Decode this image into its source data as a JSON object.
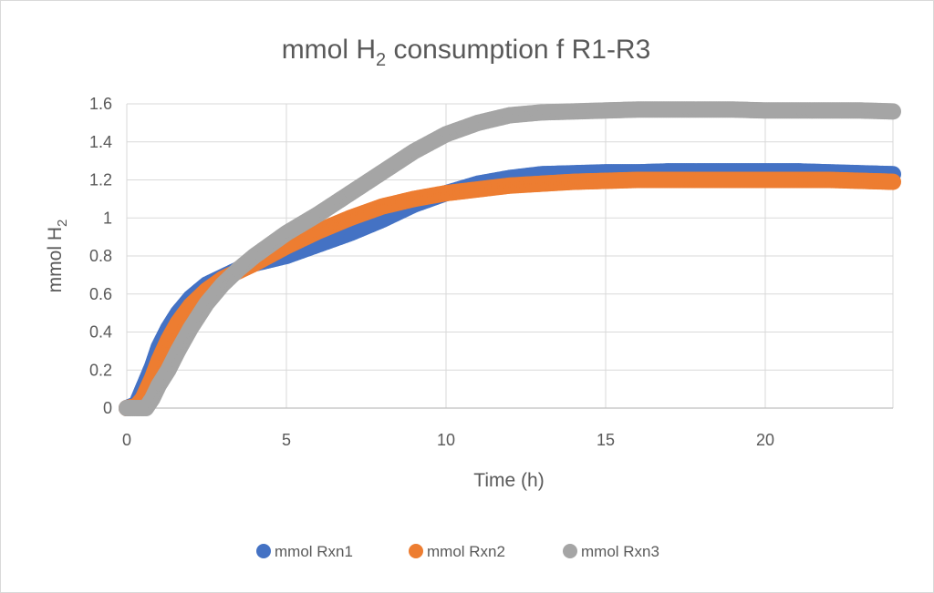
{
  "chart_data": {
    "type": "scatter",
    "title": "mmol H",
    "title_subscript": "2",
    "title_suffix": " consumption f R1-R3",
    "xlabel": "Time (h)",
    "ylabel": "mmol H",
    "ylabel_subscript": "2",
    "xlim": [
      0,
      24
    ],
    "ylim": [
      0,
      1.6
    ],
    "x_ticks": [
      "0",
      "5",
      "10",
      "15",
      "20"
    ],
    "y_ticks": [
      "0",
      "0.2",
      "0.4",
      "0.6",
      "0.8",
      "1",
      "1.2",
      "1.4",
      "1.6"
    ],
    "grid": true,
    "legend_position": "bottom",
    "series": [
      {
        "name": "mmol Rxn1",
        "color": "#4472c4",
        "points": [
          [
            0,
            0
          ],
          [
            0.3,
            0.02
          ],
          [
            0.5,
            0.1
          ],
          [
            0.8,
            0.22
          ],
          [
            1,
            0.32
          ],
          [
            1.3,
            0.42
          ],
          [
            1.6,
            0.5
          ],
          [
            2,
            0.58
          ],
          [
            2.5,
            0.65
          ],
          [
            3,
            0.69
          ],
          [
            3.5,
            0.73
          ],
          [
            4,
            0.76
          ],
          [
            5,
            0.8
          ],
          [
            6,
            0.86
          ],
          [
            7,
            0.92
          ],
          [
            8,
            0.99
          ],
          [
            9,
            1.07
          ],
          [
            10,
            1.13
          ],
          [
            11,
            1.18
          ],
          [
            12,
            1.21
          ],
          [
            13,
            1.23
          ],
          [
            14,
            1.235
          ],
          [
            15,
            1.24
          ],
          [
            16,
            1.24
          ],
          [
            17,
            1.245
          ],
          [
            18,
            1.245
          ],
          [
            19,
            1.245
          ],
          [
            20,
            1.245
          ],
          [
            21,
            1.245
          ],
          [
            22,
            1.24
          ],
          [
            23,
            1.235
          ],
          [
            24,
            1.23
          ]
        ]
      },
      {
        "name": "mmol Rxn2",
        "color": "#ed7d31",
        "points": [
          [
            0,
            0
          ],
          [
            0.3,
            0.01
          ],
          [
            0.5,
            0.05
          ],
          [
            0.8,
            0.16
          ],
          [
            1,
            0.25
          ],
          [
            1.3,
            0.36
          ],
          [
            1.6,
            0.45
          ],
          [
            2,
            0.54
          ],
          [
            2.5,
            0.62
          ],
          [
            3,
            0.68
          ],
          [
            3.5,
            0.72
          ],
          [
            4,
            0.76
          ],
          [
            5,
            0.85
          ],
          [
            6,
            0.93
          ],
          [
            7,
            1.0
          ],
          [
            8,
            1.06
          ],
          [
            9,
            1.1
          ],
          [
            10,
            1.13
          ],
          [
            11,
            1.15
          ],
          [
            12,
            1.17
          ],
          [
            13,
            1.18
          ],
          [
            14,
            1.19
          ],
          [
            15,
            1.195
          ],
          [
            16,
            1.2
          ],
          [
            17,
            1.2
          ],
          [
            18,
            1.2
          ],
          [
            19,
            1.2
          ],
          [
            20,
            1.2
          ],
          [
            21,
            1.2
          ],
          [
            22,
            1.2
          ],
          [
            23,
            1.195
          ],
          [
            24,
            1.19
          ]
        ]
      },
      {
        "name": "mmol Rxn3",
        "color": "#a5a5a5",
        "points": [
          [
            0,
            0
          ],
          [
            0.3,
            0
          ],
          [
            0.6,
            0
          ],
          [
            0.8,
            0.05
          ],
          [
            1,
            0.12
          ],
          [
            1.3,
            0.2
          ],
          [
            1.6,
            0.3
          ],
          [
            2,
            0.42
          ],
          [
            2.5,
            0.55
          ],
          [
            3,
            0.65
          ],
          [
            3.5,
            0.73
          ],
          [
            4,
            0.8
          ],
          [
            5,
            0.92
          ],
          [
            6,
            1.02
          ],
          [
            7,
            1.13
          ],
          [
            8,
            1.24
          ],
          [
            9,
            1.35
          ],
          [
            10,
            1.44
          ],
          [
            11,
            1.5
          ],
          [
            12,
            1.54
          ],
          [
            13,
            1.555
          ],
          [
            14,
            1.56
          ],
          [
            15,
            1.565
          ],
          [
            16,
            1.57
          ],
          [
            17,
            1.57
          ],
          [
            18,
            1.57
          ],
          [
            19,
            1.57
          ],
          [
            20,
            1.565
          ],
          [
            21,
            1.565
          ],
          [
            22,
            1.565
          ],
          [
            23,
            1.565
          ],
          [
            24,
            1.56
          ]
        ]
      }
    ]
  }
}
